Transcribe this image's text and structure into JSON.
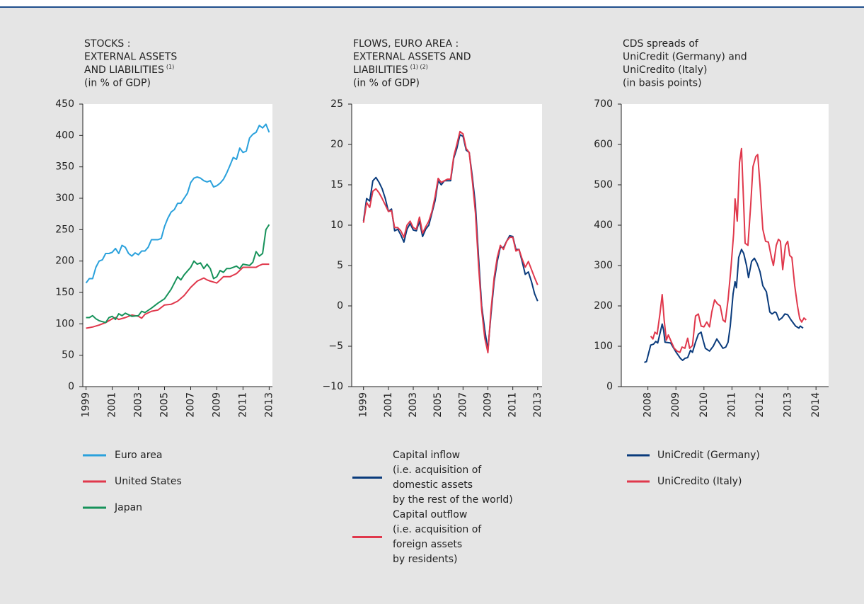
{
  "chart_data": [
    {
      "type": "line",
      "title": [
        "STOCKS :",
        "EXTERNAL ASSETS",
        "AND LIABILITIES"
      ],
      "title_note": "(1)",
      "subtitle": "(in % of GDP)",
      "xlim": [
        1998.75,
        2013.25
      ],
      "xticks": [
        1999,
        2001,
        2003,
        2005,
        2007,
        2009,
        2011,
        2013
      ],
      "ylim": [
        0,
        450
      ],
      "yticks": [
        0,
        50,
        100,
        150,
        200,
        250,
        300,
        350,
        400,
        450
      ],
      "series": [
        {
          "name": "Euro area",
          "color": "#2aa1dc",
          "x": [
            1999,
            1999.25,
            1999.5,
            1999.75,
            2000,
            2000.25,
            2000.5,
            2000.75,
            2001,
            2001.25,
            2001.5,
            2001.75,
            2002,
            2002.25,
            2002.5,
            2002.75,
            2003,
            2003.25,
            2003.5,
            2003.75,
            2004,
            2004.5,
            2004.75,
            2005,
            2005.25,
            2005.5,
            2005.75,
            2006,
            2006.25,
            2006.5,
            2006.75,
            2007,
            2007.25,
            2007.5,
            2007.75,
            2008,
            2008.25,
            2008.5,
            2008.75,
            2009,
            2009.25,
            2009.5,
            2009.75,
            2010,
            2010.25,
            2010.5,
            2010.75,
            2011,
            2011.25,
            2011.5,
            2011.75,
            2012,
            2012.25,
            2012.5,
            2012.75,
            2013
          ],
          "values": [
            165,
            172,
            172,
            190,
            200,
            202,
            212,
            212,
            214,
            220,
            212,
            225,
            222,
            212,
            208,
            213,
            210,
            216,
            216,
            222,
            234,
            234,
            236,
            255,
            268,
            278,
            282,
            292,
            292,
            300,
            308,
            325,
            332,
            334,
            332,
            328,
            326,
            328,
            318,
            320,
            324,
            330,
            340,
            352,
            365,
            362,
            380,
            373,
            375,
            396,
            402,
            405,
            416,
            412,
            418,
            405
          ]
        },
        {
          "name": "United States",
          "color": "#e0384c",
          "x": [
            1999,
            1999.5,
            2000,
            2000.5,
            2001,
            2001.25,
            2001.5,
            2002,
            2002.5,
            2003,
            2003.25,
            2003.5,
            2004,
            2004.5,
            2005,
            2005.5,
            2006,
            2006.5,
            2007,
            2007.5,
            2008,
            2008.25,
            2008.5,
            2009,
            2009.25,
            2009.5,
            2010,
            2010.5,
            2011,
            2011.5,
            2012,
            2012.25,
            2012.5,
            2013
          ],
          "values": [
            93,
            95,
            98,
            102,
            108,
            110,
            107,
            110,
            114,
            112,
            109,
            115,
            120,
            122,
            130,
            131,
            136,
            145,
            158,
            168,
            173,
            170,
            168,
            165,
            170,
            175,
            175,
            180,
            190,
            190,
            190,
            193,
            195,
            195
          ]
        },
        {
          "name": "Japan",
          "color": "#16925a",
          "x": [
            1999,
            1999.25,
            1999.5,
            1999.75,
            2000,
            2000.5,
            2000.75,
            2001,
            2001.25,
            2001.5,
            2001.75,
            2002,
            2002.5,
            2003,
            2003.25,
            2003.5,
            2004,
            2004.5,
            2005,
            2005.5,
            2006,
            2006.25,
            2006.5,
            2007,
            2007.25,
            2007.5,
            2007.75,
            2008,
            2008.25,
            2008.5,
            2008.75,
            2009,
            2009.25,
            2009.5,
            2009.75,
            2010,
            2010.5,
            2010.75,
            2011,
            2011.5,
            2011.75,
            2012,
            2012.25,
            2012.5,
            2012.75,
            2013
          ],
          "values": [
            110,
            110,
            113,
            108,
            105,
            102,
            110,
            112,
            107,
            116,
            113,
            117,
            112,
            113,
            120,
            118,
            125,
            133,
            140,
            155,
            175,
            170,
            178,
            190,
            200,
            195,
            197,
            188,
            195,
            188,
            172,
            175,
            185,
            182,
            188,
            188,
            192,
            188,
            195,
            193,
            198,
            215,
            208,
            212,
            250,
            258
          ]
        }
      ]
    },
    {
      "type": "line",
      "title": [
        "FLOWS, EURO AREA :",
        "EXTERNAL ASSETS AND",
        "LIABILITIES"
      ],
      "title_note": "(1) (2)",
      "subtitle": "(in % of GDP)",
      "xlim": [
        1998.05,
        2013.35
      ],
      "xticks": [
        1999,
        2001,
        2003,
        2005,
        2007,
        2009,
        2011,
        2013
      ],
      "ylim": [
        -10,
        25
      ],
      "yticks": [
        {
          "value": -10,
          "label": "−10"
        },
        {
          "value": -5,
          "label": "−5"
        },
        0,
        5,
        10,
        15,
        20,
        25
      ],
      "x": [
        1999,
        1999.25,
        1999.5,
        1999.75,
        2000,
        2000.25,
        2000.5,
        2000.75,
        2001,
        2001.25,
        2001.5,
        2001.75,
        2002,
        2002.25,
        2002.5,
        2002.75,
        2003,
        2003.25,
        2003.5,
        2003.75,
        2004,
        2004.25,
        2004.5,
        2004.75,
        2005,
        2005.25,
        2005.5,
        2005.75,
        2006,
        2006.25,
        2006.5,
        2006.75,
        2007,
        2007.25,
        2007.5,
        2007.75,
        2008,
        2008.25,
        2008.5,
        2008.75,
        2009,
        2009.25,
        2009.5,
        2009.75,
        2010,
        2010.25,
        2010.5,
        2010.75,
        2011,
        2011.25,
        2011.5,
        2011.75,
        2012,
        2012.25,
        2012.5,
        2012.75,
        2013
      ],
      "series": [
        {
          "name": "Capital inflow\n(i.e. acquisition of\ndomestic assets\nby the rest of the world)",
          "color": "#0a3b7c",
          "values": [
            10.5,
            13.3,
            13,
            15.5,
            15.9,
            15.3,
            14.5,
            13.3,
            11.7,
            12,
            9.3,
            9.5,
            8.8,
            7.9,
            9.5,
            10.2,
            9.4,
            9.3,
            10.5,
            8.6,
            9.5,
            10,
            11.5,
            13,
            15.5,
            15,
            15.5,
            15.5,
            15.5,
            18.3,
            19.5,
            21.2,
            21,
            19.3,
            19,
            16,
            12.5,
            6,
            0,
            -3,
            -5.5,
            -1,
            3,
            5.5,
            7.3,
            7.2,
            8,
            8.7,
            8.6,
            7,
            7,
            5.5,
            3.9,
            4.2,
            3,
            1.5,
            0.6
          ]
        },
        {
          "name": "Capital outflow\n(i.e. acquisition of\nforeign assets\nby residents)",
          "color": "#e0384c",
          "values": [
            10.3,
            12.8,
            12.2,
            14.2,
            14.5,
            14,
            13.3,
            12.5,
            11.7,
            11.8,
            9.7,
            9.7,
            9.3,
            8.5,
            10,
            10.5,
            9.7,
            9.5,
            11,
            9,
            9.8,
            10.5,
            11.7,
            13.5,
            15.8,
            15.3,
            15.5,
            15.7,
            15.7,
            18.5,
            20,
            21.6,
            21.3,
            19.5,
            19,
            15.5,
            11.5,
            5,
            -0.5,
            -4,
            -5.8,
            -0.5,
            3.5,
            6,
            7.5,
            7,
            8,
            8.5,
            8.5,
            6.8,
            7,
            5.8,
            4.8,
            5.5,
            4.5,
            3.5,
            2.6
          ]
        }
      ]
    },
    {
      "type": "line",
      "title": [
        "CDS spreads of",
        "UniCredit (Germany) and",
        "UniCredito (Italy)"
      ],
      "subtitle": "(in basis points)",
      "xlim": [
        2007.05,
        2014.45
      ],
      "xticks": [
        2008,
        2009,
        2010,
        2011,
        2012,
        2013,
        2014
      ],
      "ylim": [
        0,
        700
      ],
      "yticks": [
        0,
        100,
        200,
        300,
        400,
        500,
        600,
        700
      ],
      "series": [
        {
          "name": "UniCredit (Germany)",
          "color": "#0a3b7c",
          "x": [
            2007.87,
            2007.95,
            2008.1,
            2008.2,
            2008.28,
            2008.35,
            2008.51,
            2008.56,
            2008.61,
            2008.81,
            2009.01,
            2009.16,
            2009.24,
            2009.32,
            2009.42,
            2009.52,
            2009.59,
            2009.7,
            2009.8,
            2009.9,
            2009.97,
            2010.05,
            2010.2,
            2010.33,
            2010.46,
            2010.58,
            2010.68,
            2010.78,
            2010.86,
            2010.94,
            2011.04,
            2011.11,
            2011.16,
            2011.24,
            2011.34,
            2011.42,
            2011.52,
            2011.59,
            2011.7,
            2011.8,
            2011.9,
            2012,
            2012.1,
            2012.23,
            2012.35,
            2012.43,
            2012.53,
            2012.58,
            2012.68,
            2012.78,
            2012.89,
            2012.99,
            2013.11,
            2013.27,
            2013.39,
            2013.44,
            2013.54
          ],
          "values": [
            60,
            62,
            103,
            105,
            112,
            108,
            155,
            140,
            110,
            108,
            85,
            70,
            65,
            70,
            72,
            90,
            85,
            110,
            130,
            135,
            115,
            95,
            88,
            100,
            118,
            105,
            95,
            98,
            110,
            150,
            230,
            260,
            245,
            320,
            340,
            330,
            300,
            270,
            310,
            318,
            305,
            285,
            250,
            235,
            185,
            180,
            185,
            183,
            165,
            170,
            180,
            178,
            165,
            150,
            145,
            150,
            145
          ]
        },
        {
          "name": "UniCredito (Italy)",
          "color": "#e0384c",
          "x": [
            2008.1,
            2008.18,
            2008.25,
            2008.33,
            2008.43,
            2008.51,
            2008.58,
            2008.66,
            2008.73,
            2008.84,
            2008.94,
            2009.04,
            2009.14,
            2009.22,
            2009.32,
            2009.42,
            2009.49,
            2009.59,
            2009.7,
            2009.8,
            2009.9,
            2010,
            2010.1,
            2010.2,
            2010.28,
            2010.38,
            2010.48,
            2010.58,
            2010.68,
            2010.76,
            2010.86,
            2010.96,
            2011.06,
            2011.11,
            2011.19,
            2011.27,
            2011.34,
            2011.42,
            2011.47,
            2011.57,
            2011.67,
            2011.75,
            2011.85,
            2011.92,
            2012,
            2012.1,
            2012.2,
            2012.3,
            2012.41,
            2012.48,
            2012.58,
            2012.66,
            2012.73,
            2012.81,
            2012.91,
            2012.99,
            2013.06,
            2013.14,
            2013.24,
            2013.34,
            2013.42,
            2013.49,
            2013.57,
            2013.65
          ],
          "values": [
            125,
            118,
            135,
            130,
            180,
            228,
            165,
            115,
            128,
            110,
            95,
            88,
            85,
            98,
            95,
            120,
            95,
            102,
            175,
            180,
            150,
            148,
            160,
            148,
            185,
            215,
            205,
            200,
            165,
            160,
            215,
            290,
            380,
            465,
            410,
            555,
            590,
            450,
            355,
            350,
            450,
            545,
            570,
            575,
            500,
            390,
            360,
            358,
            320,
            300,
            350,
            365,
            360,
            290,
            350,
            360,
            325,
            320,
            250,
            200,
            168,
            160,
            170,
            165
          ]
        }
      ]
    }
  ]
}
